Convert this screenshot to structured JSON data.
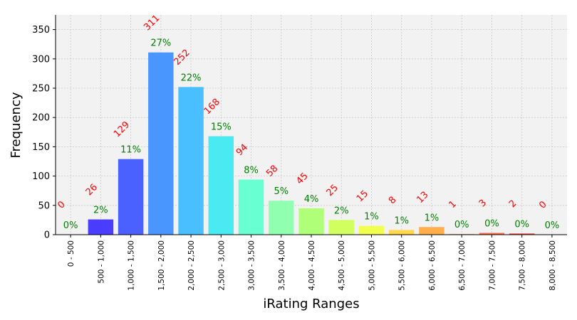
{
  "chart_data": {
    "type": "bar",
    "title": "",
    "xlabel": "iRating Ranges",
    "ylabel": "Frequency",
    "ylim": [
      0,
      375
    ],
    "yticks": [
      0,
      50,
      100,
      150,
      200,
      250,
      300,
      350
    ],
    "grid": true,
    "categories": [
      "0 - 500",
      "500 - 1,000",
      "1,000 - 1,500",
      "1,500 - 2,000",
      "2,000 - 2,500",
      "2,500 - 3,000",
      "3,000 - 3,500",
      "3,500 - 4,000",
      "4,000 - 4,500",
      "4,500 - 5,000",
      "5,000 - 5,500",
      "5,500 - 6,000",
      "6,000 - 6,500",
      "6,500 - 7,000",
      "7,000 - 7,500",
      "7,500 - 8,000",
      "8,000 - 8,500"
    ],
    "values": [
      0,
      26,
      129,
      311,
      252,
      168,
      94,
      58,
      45,
      25,
      15,
      8,
      13,
      1,
      3,
      2,
      0
    ],
    "count_labels": [
      "0",
      "26",
      "129",
      "311",
      "252",
      "168",
      "94",
      "58",
      "45",
      "25",
      "15",
      "8",
      "13",
      "1",
      "3",
      "2",
      "0"
    ],
    "percent_labels": [
      "0%",
      "2%",
      "11%",
      "27%",
      "22%",
      "15%",
      "8%",
      "5%",
      "4%",
      "2%",
      "1%",
      "1%",
      "1%",
      "0%",
      "0%",
      "0%",
      "0%"
    ],
    "bar_colors": [
      "#3a00ff",
      "#4a3dff",
      "#4a60ff",
      "#4a96ff",
      "#4abfff",
      "#4aeaf2",
      "#68ffd2",
      "#90ffb0",
      "#b0ff78",
      "#d0ff60",
      "#f2ff50",
      "#ffd84a",
      "#ffae4a",
      "#ff8a4a",
      "#ff6a4a",
      "#f0483a",
      "#e02010"
    ],
    "colors": {
      "plot_background": "#f2f2f2",
      "grid": "#c8c8c8",
      "count_label": "#ff0000",
      "percent_label": "#008000"
    }
  }
}
